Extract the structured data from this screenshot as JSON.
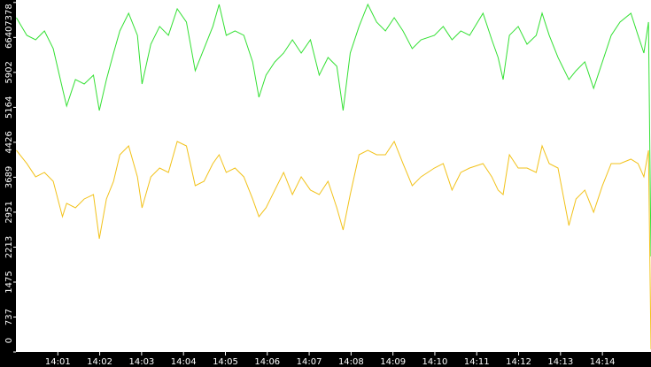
{
  "chart_data": {
    "type": "line",
    "x": [
      0.01,
      0.26,
      0.47,
      0.68,
      0.89,
      1.11,
      1.21,
      1.42,
      1.63,
      1.85,
      1.99,
      2.16,
      2.33,
      2.48,
      2.69,
      2.9,
      3.01,
      3.22,
      3.43,
      3.64,
      3.85,
      4.07,
      4.28,
      4.49,
      4.7,
      4.85,
      5.02,
      5.23,
      5.44,
      5.65,
      5.8,
      5.97,
      6.18,
      6.39,
      6.6,
      6.81,
      7.03,
      7.24,
      7.45,
      7.66,
      7.81,
      7.98,
      8.19,
      8.4,
      8.61,
      8.82,
      9.03,
      9.24,
      9.46,
      9.67,
      9.99,
      10.2,
      10.41,
      10.62,
      10.83,
      11.15,
      11.36,
      11.51,
      11.63,
      11.78,
      11.99,
      12.2,
      12.42,
      12.56,
      12.73,
      12.94,
      13.2,
      13.37,
      13.58,
      13.79,
      14.0,
      14.21,
      14.42,
      14.68,
      14.85,
      14.99,
      15.1,
      15.16
    ],
    "series": [
      {
        "color": "#33e033",
        "values": [
          7057,
          6684,
          6590,
          6777,
          6404,
          5564,
          5191,
          5750,
          5657,
          5844,
          5097,
          5750,
          6310,
          6777,
          7151,
          6684,
          5657,
          6497,
          6871,
          6684,
          7244,
          6964,
          5937,
          6404,
          6871,
          7337,
          6684,
          6777,
          6684,
          6124,
          5377,
          5844,
          6124,
          6310,
          6590,
          6310,
          6590,
          5844,
          6217,
          6030,
          5097,
          6310,
          6871,
          7337,
          6964,
          6777,
          7057,
          6777,
          6404,
          6590,
          6684,
          6871,
          6590,
          6777,
          6684,
          7151,
          6590,
          6217,
          5750,
          6684,
          6871,
          6497,
          6684,
          7151,
          6684,
          6217,
          5750,
          5937,
          6124,
          5564,
          6124,
          6684,
          6964,
          7151,
          6684,
          6310,
          6964,
          2016
        ]
      },
      {
        "color": "#f2c21a",
        "values": [
          4257,
          3977,
          3697,
          3790,
          3603,
          2857,
          3137,
          3043,
          3230,
          3323,
          2390,
          3230,
          3603,
          4163,
          4350,
          3697,
          3043,
          3697,
          3883,
          3790,
          4443,
          4350,
          3510,
          3603,
          3977,
          4163,
          3790,
          3883,
          3697,
          3230,
          2857,
          3043,
          3417,
          3790,
          3323,
          3697,
          3417,
          3323,
          3603,
          3043,
          2576,
          3323,
          4163,
          4257,
          4163,
          4163,
          4443,
          3977,
          3510,
          3697,
          3883,
          3977,
          3417,
          3790,
          3883,
          3977,
          3697,
          3417,
          3323,
          4163,
          3883,
          3883,
          3790,
          4350,
          3977,
          3883,
          2670,
          3230,
          3417,
          2950,
          3510,
          3977,
          3977,
          4070,
          3977,
          3697,
          4257,
          56
        ]
      }
    ],
    "xlim": [
      0,
      15.16
    ],
    "xticks": [
      {
        "value": 1,
        "label": "14:01"
      },
      {
        "value": 2,
        "label": "14:02"
      },
      {
        "value": 3,
        "label": "14:03"
      },
      {
        "value": 4,
        "label": "14:04"
      },
      {
        "value": 5,
        "label": "14:05"
      },
      {
        "value": 6,
        "label": "14:06"
      },
      {
        "value": 7,
        "label": "14:07"
      },
      {
        "value": 8,
        "label": "14:08"
      },
      {
        "value": 9,
        "label": "14:09"
      },
      {
        "value": 10,
        "label": "14:10"
      },
      {
        "value": 11,
        "label": "14:11"
      },
      {
        "value": 12,
        "label": "14:12"
      },
      {
        "value": 13,
        "label": "14:13"
      },
      {
        "value": 14,
        "label": "14:14"
      }
    ],
    "ylim": [
      0,
      7430
    ],
    "yticks": [
      0,
      737,
      1475,
      2213,
      2951,
      3689,
      4426,
      5164,
      5902,
      6640,
      7378
    ]
  }
}
